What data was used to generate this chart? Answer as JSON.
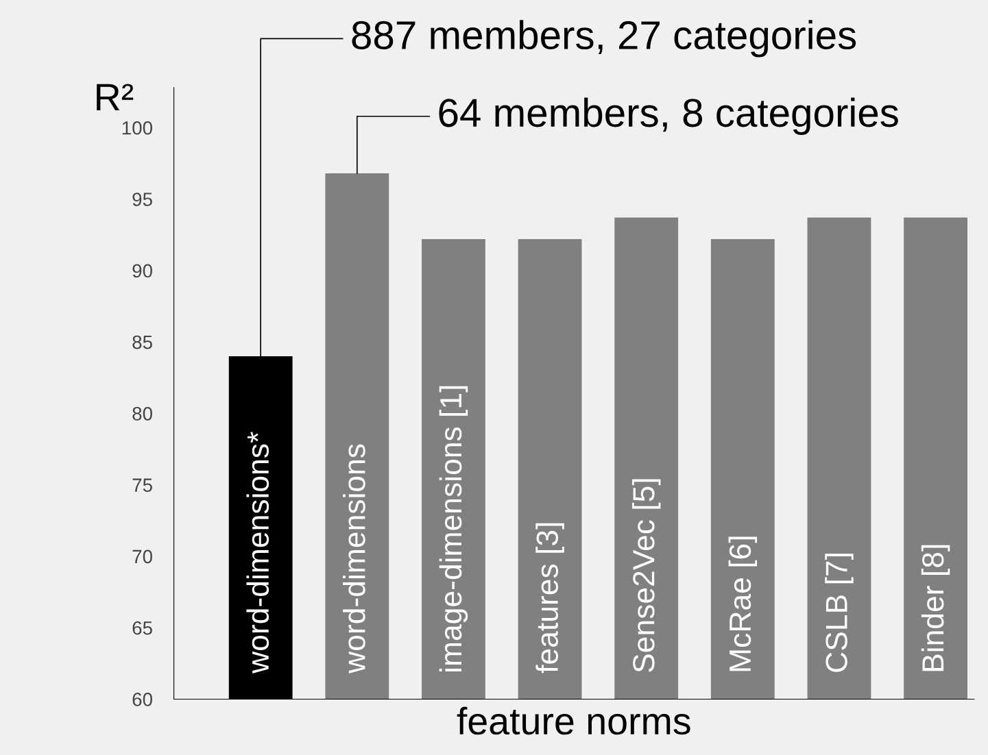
{
  "chart_data": {
    "type": "bar",
    "xlabel": "feature norms",
    "ylabel": "R²",
    "categories": [
      "word-dimensions*",
      "word-dimensions",
      "image-dimensions [1]",
      "features [3]",
      "Sense2Vec [5]",
      "McRae [6]",
      "CSLB [7]",
      "Binder [8]"
    ],
    "values": [
      84,
      96.8,
      92.2,
      92.2,
      93.7,
      92.2,
      93.7,
      93.7
    ],
    "colors": [
      "#000000",
      "#808080",
      "#808080",
      "#808080",
      "#808080",
      "#808080",
      "#808080",
      "#808080"
    ],
    "ylim": [
      60,
      102.8
    ],
    "yticks": [
      60,
      65,
      70,
      75,
      80,
      85,
      90,
      95,
      100
    ],
    "grid": false,
    "annotations": [
      {
        "text": "887 members, 27 categories",
        "x": "word-dimensions*",
        "y": 84
      },
      {
        "text": "64 members, 8 categories",
        "x": "word-dimensions",
        "y": 96.8
      }
    ]
  }
}
